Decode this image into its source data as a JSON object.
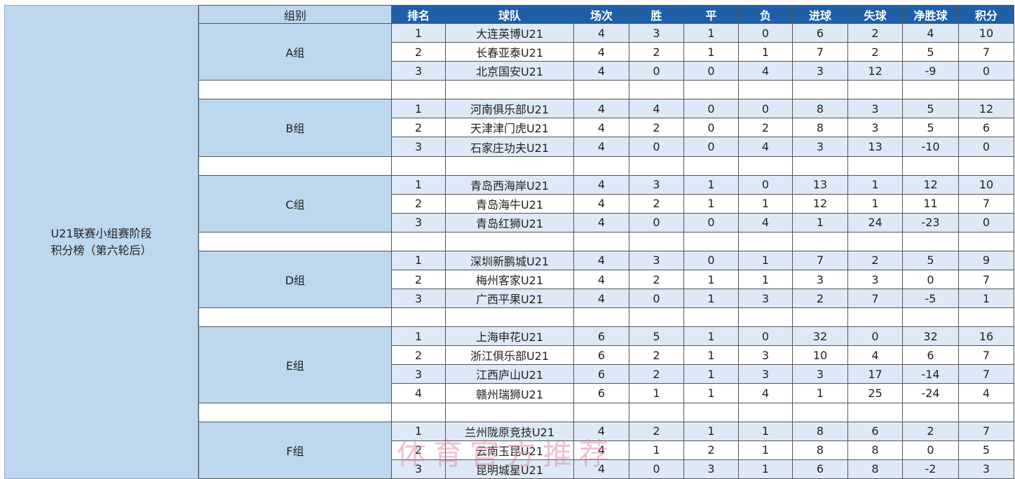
{
  "title_lines": [
    "U21联赛小组赛阶段",
    "积分榜（第六轮后）"
  ],
  "headers": [
    "组别",
    "排名",
    "球队",
    "场次",
    "胜",
    "平",
    "负",
    "进球",
    "失球",
    "净胜球",
    "积分"
  ],
  "groups": [
    {
      "name": "A组",
      "rows": [
        [
          "1",
          "大连英博U21",
          "4",
          "3",
          "1",
          "0",
          "6",
          "2",
          "4",
          "10"
        ],
        [
          "2",
          "长春亚泰U21",
          "4",
          "2",
          "1",
          "1",
          "7",
          "2",
          "5",
          "7"
        ],
        [
          "3",
          "北京国安U21",
          "4",
          "0",
          "0",
          "4",
          "3",
          "12",
          "-9",
          "0"
        ]
      ]
    },
    {
      "name": "B组",
      "rows": [
        [
          "1",
          "河南俱乐部U21",
          "4",
          "4",
          "0",
          "0",
          "8",
          "3",
          "5",
          "12"
        ],
        [
          "2",
          "天津津门虎U21",
          "4",
          "2",
          "0",
          "2",
          "8",
          "3",
          "5",
          "6"
        ],
        [
          "3",
          "石家庄功夫U21",
          "4",
          "0",
          "0",
          "4",
          "3",
          "13",
          "-10",
          "0"
        ]
      ]
    },
    {
      "name": "C组",
      "rows": [
        [
          "1",
          "青岛西海岸U21",
          "4",
          "3",
          "1",
          "0",
          "13",
          "1",
          "12",
          "10"
        ],
        [
          "2",
          "青岛海牛U21",
          "4",
          "2",
          "1",
          "1",
          "12",
          "1",
          "11",
          "7"
        ],
        [
          "3",
          "青岛红狮U21",
          "4",
          "0",
          "0",
          "4",
          "1",
          "24",
          "-23",
          "0"
        ]
      ]
    },
    {
      "name": "D组",
      "rows": [
        [
          "1",
          "深圳新鹏城U21",
          "4",
          "3",
          "0",
          "1",
          "7",
          "2",
          "5",
          "9"
        ],
        [
          "2",
          "梅州客家U21",
          "4",
          "2",
          "1",
          "1",
          "3",
          "3",
          "0",
          "7"
        ],
        [
          "3",
          "广西平果U21",
          "4",
          "0",
          "1",
          "3",
          "2",
          "7",
          "-5",
          "1"
        ]
      ]
    },
    {
      "name": "E组",
      "rows": [
        [
          "1",
          "上海申花U21",
          "6",
          "5",
          "1",
          "0",
          "32",
          "0",
          "32",
          "16"
        ],
        [
          "2",
          "浙江俱乐部U21",
          "6",
          "2",
          "1",
          "3",
          "10",
          "4",
          "6",
          "7"
        ],
        [
          "3",
          "江西庐山U21",
          "6",
          "2",
          "1",
          "3",
          "3",
          "17",
          "-14",
          "7"
        ],
        [
          "4",
          "赣州瑞狮U21",
          "6",
          "1",
          "1",
          "4",
          "1",
          "25",
          "-24",
          "4"
        ]
      ]
    },
    {
      "name": "F组",
      "rows": [
        [
          "1",
          "兰州陇原竞技U21",
          "4",
          "2",
          "1",
          "1",
          "8",
          "6",
          "2",
          "7"
        ],
        [
          "2",
          "云南玉昆U21",
          "4",
          "1",
          "2",
          "1",
          "8",
          "8",
          "0",
          "5"
        ],
        [
          "3",
          "昆明城星U21",
          "4",
          "0",
          "3",
          "1",
          "6",
          "8",
          "-2",
          "3"
        ]
      ]
    }
  ],
  "watermark": "体育官方推荐",
  "colors": {
    "header": "#1f5fa8",
    "group_cell": "#bdd7ee",
    "stripe": "#dde9f6"
  }
}
